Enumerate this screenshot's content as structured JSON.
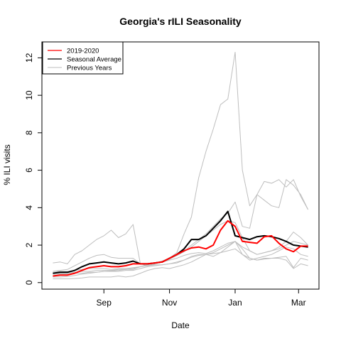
{
  "chart_data": {
    "type": "line",
    "title": "Georgia's rILI Seasonality",
    "xlabel": "Date",
    "ylabel": "% ILI visits",
    "x": [
      0,
      1,
      2,
      3,
      4,
      5,
      6,
      7,
      8,
      9,
      10,
      11,
      12,
      13,
      14,
      15,
      16,
      17,
      18,
      19,
      20,
      21,
      22,
      23,
      24,
      25,
      26,
      27,
      28,
      29,
      30,
      31,
      32,
      33,
      34,
      35
    ],
    "x_ticks": [
      {
        "pos": 7,
        "label": "Sep"
      },
      {
        "pos": 16,
        "label": "Nov"
      },
      {
        "pos": 25,
        "label": "Jan"
      },
      {
        "pos": 33.7,
        "label": "Mar"
      }
    ],
    "xlim": [
      -1.5,
      36.5
    ],
    "ylim": [
      -0.35,
      12.85
    ],
    "y_ticks": [
      0,
      2,
      4,
      6,
      8,
      10,
      12
    ],
    "grid": false,
    "legend_position": "top-left",
    "legend": [
      {
        "label": "2019-2020",
        "color": "#ff0000"
      },
      {
        "label": "Seasonal Average",
        "color": "#000000"
      },
      {
        "label": "Previous Years",
        "color": "#bebebe"
      }
    ],
    "series": [
      {
        "name": "Previous Years",
        "color": "#bebebe",
        "values": [
          1.05,
          1.1,
          1.0,
          1.5,
          1.7,
          2.0,
          2.3,
          2.5,
          2.8,
          2.4,
          2.6,
          3.1,
          1.0,
          0.9,
          1.0,
          1.1,
          1.3,
          1.6,
          2.6,
          3.5,
          5.6,
          7.0,
          8.2,
          9.5,
          9.8,
          12.3,
          6.0,
          4.1,
          4.7,
          5.4,
          5.3,
          5.5,
          5.1,
          5.5,
          4.6,
          3.9
        ]
      },
      {
        "name": "Previous Years",
        "color": "#bebebe",
        "values": [
          0.6,
          0.65,
          0.7,
          0.9,
          1.1,
          1.3,
          1.45,
          1.5,
          1.35,
          1.3,
          1.3,
          1.3,
          1.0,
          1.0,
          1.05,
          1.1,
          1.25,
          1.45,
          1.65,
          2.0,
          2.3,
          2.6,
          3.0,
          3.4,
          3.7,
          4.3,
          3.0,
          2.9,
          4.7,
          4.4,
          4.1,
          4.0,
          5.5,
          5.2,
          4.7,
          3.9
        ]
      },
      {
        "name": "Previous Years",
        "color": "#bebebe",
        "values": [
          0.3,
          0.3,
          0.32,
          0.38,
          0.45,
          0.5,
          0.55,
          0.6,
          0.62,
          0.65,
          0.7,
          0.7,
          0.85,
          0.95,
          1.05,
          1.15,
          1.3,
          1.45,
          1.65,
          1.9,
          2.2,
          2.5,
          2.8,
          3.1,
          3.3,
          3.2,
          2.4,
          1.7,
          1.5,
          1.6,
          1.7,
          1.9,
          2.2,
          2.7,
          2.4,
          2.0
        ]
      },
      {
        "name": "Previous Years",
        "color": "#bebebe",
        "values": [
          0.6,
          0.6,
          0.6,
          0.65,
          0.7,
          0.75,
          0.75,
          0.75,
          0.7,
          0.75,
          0.75,
          0.8,
          0.85,
          0.95,
          1.0,
          1.1,
          1.2,
          1.3,
          1.45,
          1.55,
          1.6,
          1.55,
          1.7,
          1.9,
          2.1,
          2.2,
          1.9,
          1.7,
          1.5,
          1.6,
          1.7,
          1.8,
          2.0,
          2.2,
          2.1,
          2.0
        ]
      },
      {
        "name": "Previous Years",
        "color": "#bebebe",
        "values": [
          0.5,
          0.5,
          0.5,
          0.55,
          0.6,
          0.6,
          0.65,
          0.65,
          0.65,
          0.7,
          0.7,
          0.75,
          0.85,
          0.9,
          0.95,
          0.95,
          1.0,
          1.05,
          1.2,
          1.4,
          1.5,
          1.5,
          1.6,
          1.8,
          2.0,
          2.2,
          1.5,
          1.2,
          1.3,
          1.4,
          1.5,
          1.7,
          1.9,
          1.8,
          1.5,
          1.4
        ]
      },
      {
        "name": "Previous Years",
        "color": "#bebebe",
        "values": [
          0.45,
          0.45,
          0.45,
          0.5,
          0.5,
          0.55,
          0.55,
          0.6,
          0.6,
          0.6,
          0.65,
          0.65,
          0.75,
          0.85,
          0.9,
          0.95,
          1.0,
          1.1,
          1.2,
          1.35,
          1.45,
          1.5,
          1.55,
          1.6,
          1.7,
          1.8,
          1.5,
          1.3,
          1.2,
          1.3,
          1.3,
          1.35,
          1.4,
          0.8,
          1.3,
          1.2
        ]
      },
      {
        "name": "Previous Years",
        "color": "#bebebe",
        "values": [
          0.2,
          0.2,
          0.2,
          0.22,
          0.25,
          0.3,
          0.3,
          0.3,
          0.3,
          0.35,
          0.3,
          0.35,
          0.5,
          0.65,
          0.75,
          0.8,
          0.75,
          0.85,
          0.95,
          1.1,
          1.3,
          1.5,
          1.4,
          1.6,
          1.9,
          2.2,
          1.8,
          1.3,
          1.2,
          1.25,
          1.3,
          1.3,
          1.2,
          0.75,
          1.0,
          0.9
        ]
      },
      {
        "name": "Seasonal Average",
        "color": "#000000",
        "values": [
          0.5,
          0.55,
          0.55,
          0.65,
          0.85,
          1.0,
          1.05,
          1.1,
          1.05,
          1.0,
          1.05,
          1.15,
          1.0,
          1.0,
          1.05,
          1.1,
          1.3,
          1.5,
          1.8,
          2.3,
          2.3,
          2.5,
          2.9,
          3.3,
          3.8,
          2.5,
          2.4,
          2.3,
          2.45,
          2.5,
          2.45,
          2.35,
          2.2,
          2.0,
          1.95,
          1.9
        ]
      },
      {
        "name": "2019-2020",
        "color": "#ff0000",
        "values": [
          0.35,
          0.4,
          0.4,
          0.5,
          0.65,
          0.8,
          0.85,
          0.9,
          0.85,
          0.85,
          0.9,
          1.0,
          1.0,
          1.0,
          1.05,
          1.1,
          1.3,
          1.5,
          1.7,
          1.85,
          1.9,
          1.8,
          2.0,
          2.8,
          3.3,
          3.0,
          2.2,
          2.15,
          2.1,
          2.45,
          2.5,
          2.1,
          1.8,
          1.65,
          1.95,
          1.95
        ]
      }
    ]
  }
}
